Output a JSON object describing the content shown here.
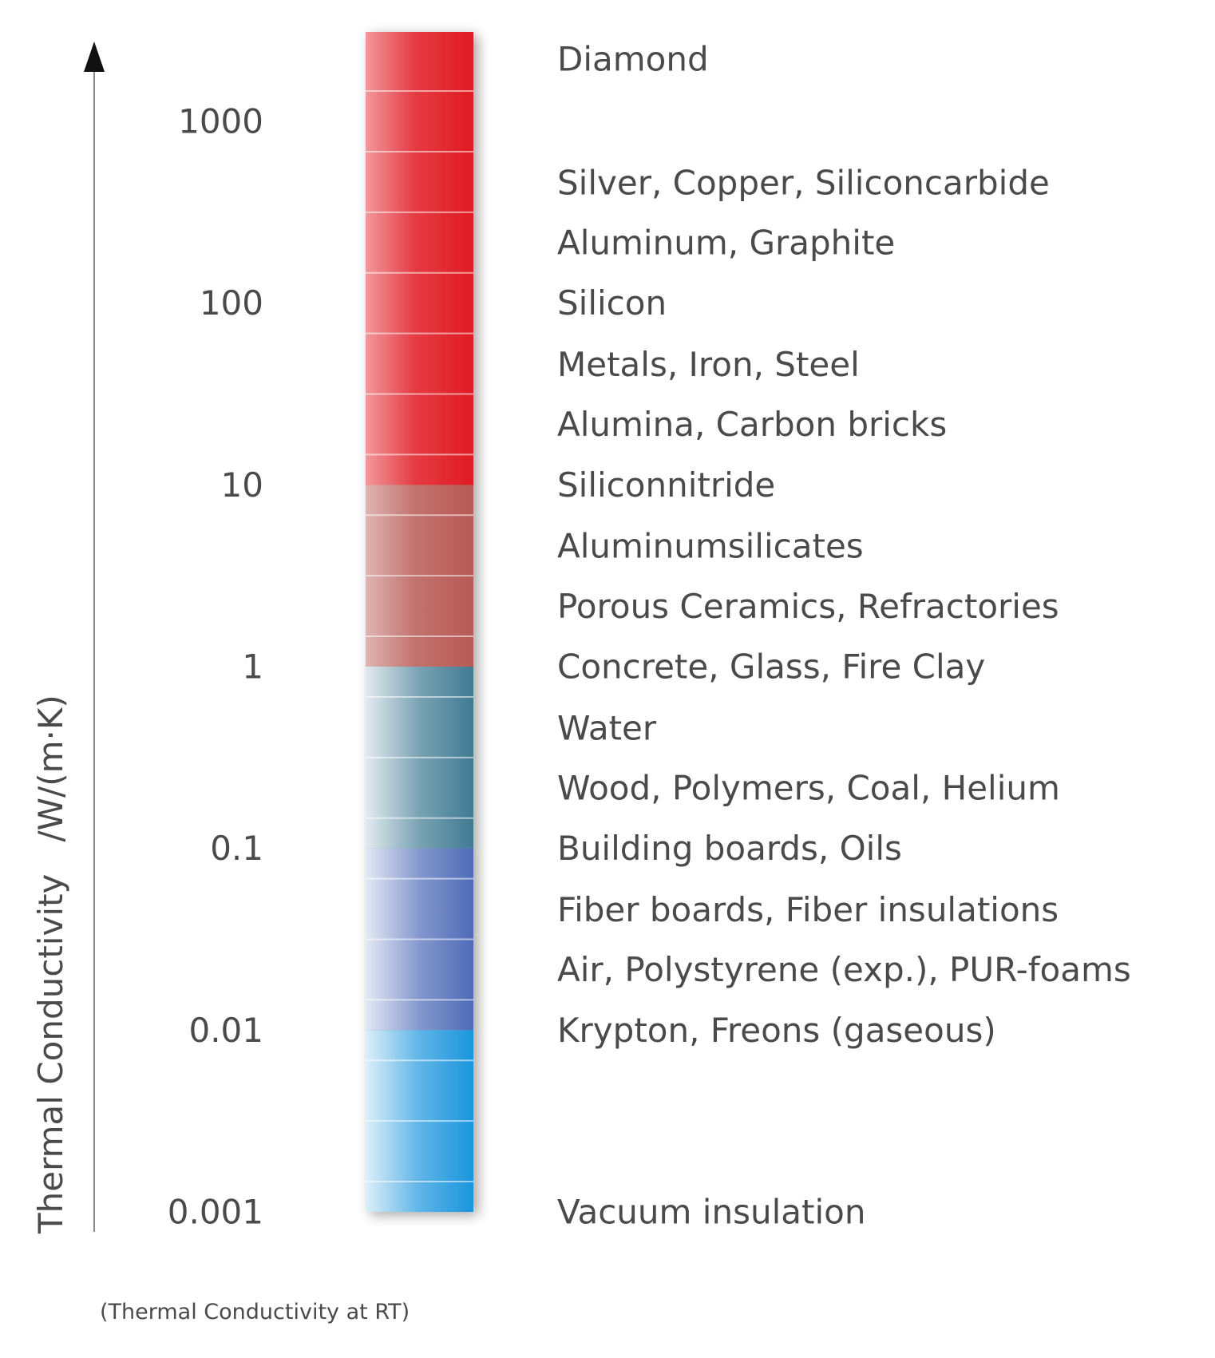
{
  "chart_data": {
    "type": "scale-bar",
    "scale": "log",
    "ylabel": "Thermal Conductivity   /W/(m·K)",
    "caption": "(Thermal Conductivity at RT)",
    "ylim": [
      0.001,
      5000
    ],
    "ticks": [
      {
        "label": "1000",
        "value": 1000
      },
      {
        "label": "100",
        "value": 100
      },
      {
        "label": "10",
        "value": 10
      },
      {
        "label": "1",
        "value": 1
      },
      {
        "label": "0.1",
        "value": 0.1
      },
      {
        "label": "0.01",
        "value": 0.01
      },
      {
        "label": "0.001",
        "value": 0.001
      }
    ],
    "materials": [
      {
        "label": "Diamond",
        "value": 2200
      },
      {
        "label": "Silver, Copper, Siliconcarbide",
        "value": 460
      },
      {
        "label": "Aluminum, Graphite",
        "value": 215
      },
      {
        "label": "Silicon",
        "value": 100
      },
      {
        "label": "Metals, Iron, Steel",
        "value": 46
      },
      {
        "label": "Alumina, Carbon bricks",
        "value": 21.5
      },
      {
        "label": "Siliconnitride",
        "value": 10
      },
      {
        "label": "Aluminumsilicates",
        "value": 4.6
      },
      {
        "label": "Porous Ceramics, Refractories",
        "value": 2.15
      },
      {
        "label": "Concrete, Glass, Fire Clay",
        "value": 1
      },
      {
        "label": "Water",
        "value": 0.46
      },
      {
        "label": "Wood, Polymers, Coal, Helium",
        "value": 0.215
      },
      {
        "label": "Building boards, Oils",
        "value": 0.1
      },
      {
        "label": "Fiber boards, Fiber insulations",
        "value": 0.046
      },
      {
        "label": "Air, Polystyrene (exp.), PUR-foams",
        "value": 0.0215
      },
      {
        "label": "Krypton, Freons (gaseous)",
        "value": 0.01
      },
      {
        "label": "Vacuum insulation",
        "value": 0.001
      }
    ],
    "color_bands": [
      {
        "from": 1,
        "to": 5000,
        "name": "red-high",
        "color": "#e01a22"
      },
      {
        "from": 1,
        "to": 10,
        "name": "red-low",
        "color": "#b85a55"
      },
      {
        "from": 0.1,
        "to": 1,
        "name": "teal",
        "color": "#3f7b93"
      },
      {
        "from": 0.01,
        "to": 0.1,
        "name": "blue-violet",
        "color": "#4f6bb8"
      },
      {
        "from": 0.001,
        "to": 0.01,
        "name": "light-blue",
        "color": "#1a95dd"
      }
    ]
  }
}
